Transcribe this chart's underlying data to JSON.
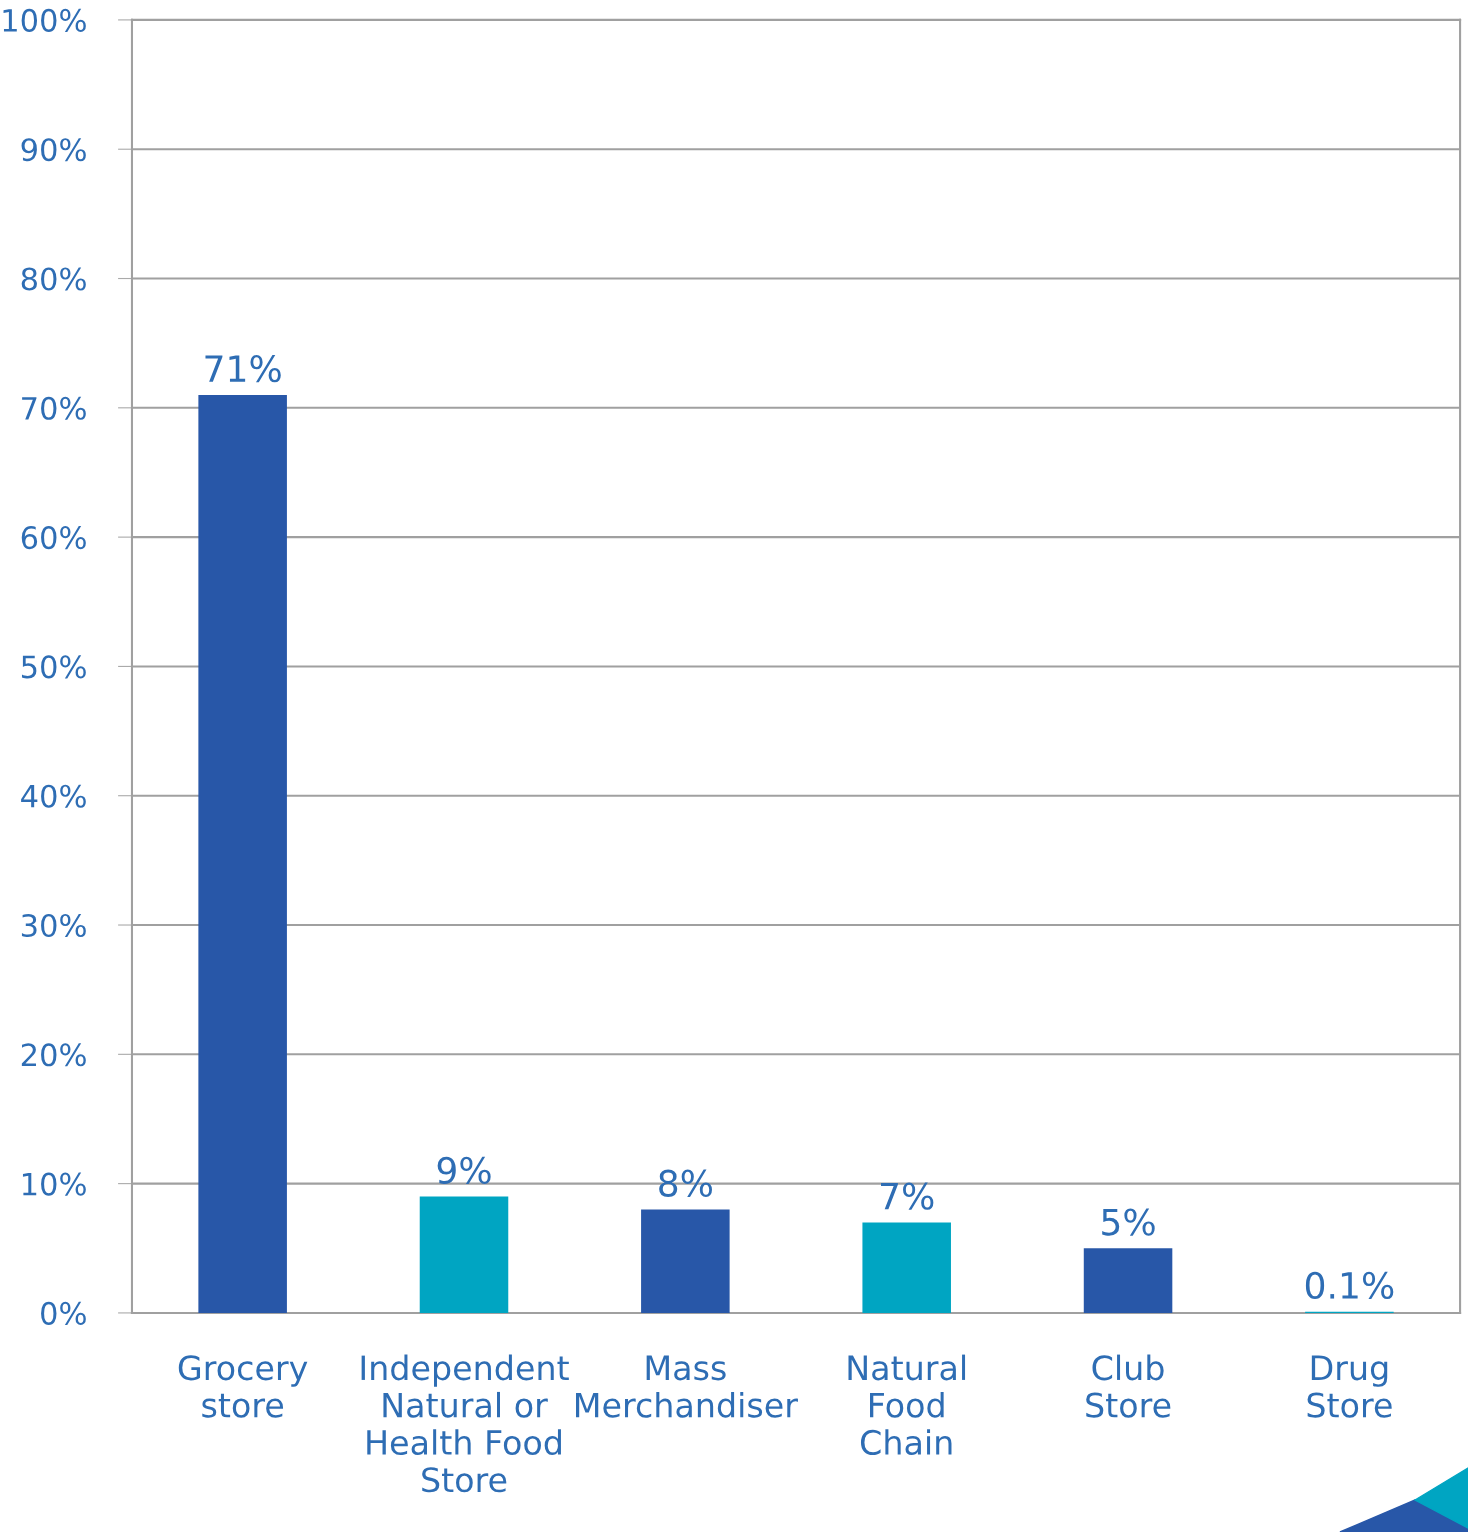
{
  "chart_data": {
    "type": "bar",
    "categories": [
      "Grocery\nstore",
      "Independent\nNatural or\nHealth Food\nStore",
      "Mass\nMerchandiser",
      "Natural\nFood\nChain",
      "Club\nStore",
      "Drug\nStore"
    ],
    "values": [
      71,
      9,
      8,
      7,
      5,
      0.1
    ],
    "colors": [
      "#2857a8",
      "#00a5c2",
      "#2857a8",
      "#00a5c2",
      "#2857a8",
      "#00a5c2"
    ],
    "value_labels": [
      "71%",
      "9%",
      "8%",
      "7%",
      "5%",
      "0.1%"
    ],
    "ylim": [
      0,
      100
    ],
    "yticks": [
      {
        "value": 0,
        "label": "0%"
      },
      {
        "value": 10,
        "label": "10%"
      },
      {
        "value": 20,
        "label": "20%"
      },
      {
        "value": 30,
        "label": "30%"
      },
      {
        "value": 40,
        "label": "40%"
      },
      {
        "value": 50,
        "label": "50%"
      },
      {
        "value": 60,
        "label": "60%"
      },
      {
        "value": 70,
        "label": "70%"
      },
      {
        "value": 80,
        "label": "80%"
      },
      {
        "value": 90,
        "label": "90%"
      },
      {
        "value": 100,
        "label": "100%"
      }
    ],
    "grid": "y",
    "legend": false
  }
}
